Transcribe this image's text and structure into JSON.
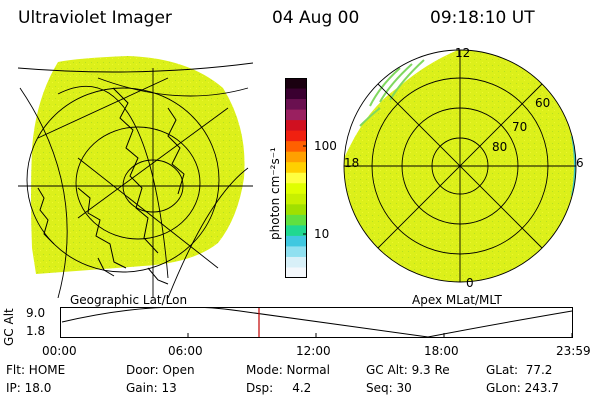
{
  "header": {
    "instrument": "Ultraviolet Imager",
    "date": "04 Aug 00",
    "time": "09:18:10 UT"
  },
  "colorbar": {
    "unit": "photon cm⁻²s⁻¹",
    "ticks": [
      "100",
      "10"
    ],
    "colors": [
      "#1a0010",
      "#3a0030",
      "#6a1050",
      "#9a2060",
      "#d01020",
      "#f02010",
      "#ff6000",
      "#ffa000",
      "#ffd000",
      "#ffff40",
      "#e0ff00",
      "#c8f000",
      "#a0e000",
      "#60e040",
      "#20d890",
      "#40c8e0",
      "#90e0f0",
      "#d8f0f8",
      "#f4f8fc"
    ]
  },
  "left_panel": {
    "label": "Geographic Lat/Lon",
    "fill_color": "#dcf01a"
  },
  "right_panel": {
    "label": "Apex MLat/MLT",
    "fill_color": "#dcf01a",
    "mlt_labels": {
      "top": "12",
      "left": "18",
      "right": "6",
      "bottom": "0"
    },
    "lat_labels": [
      "60",
      "70",
      "80"
    ]
  },
  "altitude_plot": {
    "axis_label": "GC Alt",
    "y_ticks": [
      "9.0",
      "1.8"
    ],
    "x_ticks": [
      "00:00",
      "06:00",
      "12:00",
      "18:00",
      "23:59"
    ],
    "current_time_marker": "09:18",
    "marker_color": "#c00000"
  },
  "info": {
    "row1": {
      "flt": "Flt: HOME",
      "door": "Door: Open",
      "mode": "Mode: Normal",
      "gc_alt": "GC Alt: 9.3 Re",
      "glat": "GLat:  77.2"
    },
    "row2": {
      "ip": "IP: 18.0",
      "gain": "Gain: 13",
      "dsp": "Dsp:     4.2",
      "seq": "Seq: 30",
      "glon": "GLon: 243.7"
    }
  }
}
